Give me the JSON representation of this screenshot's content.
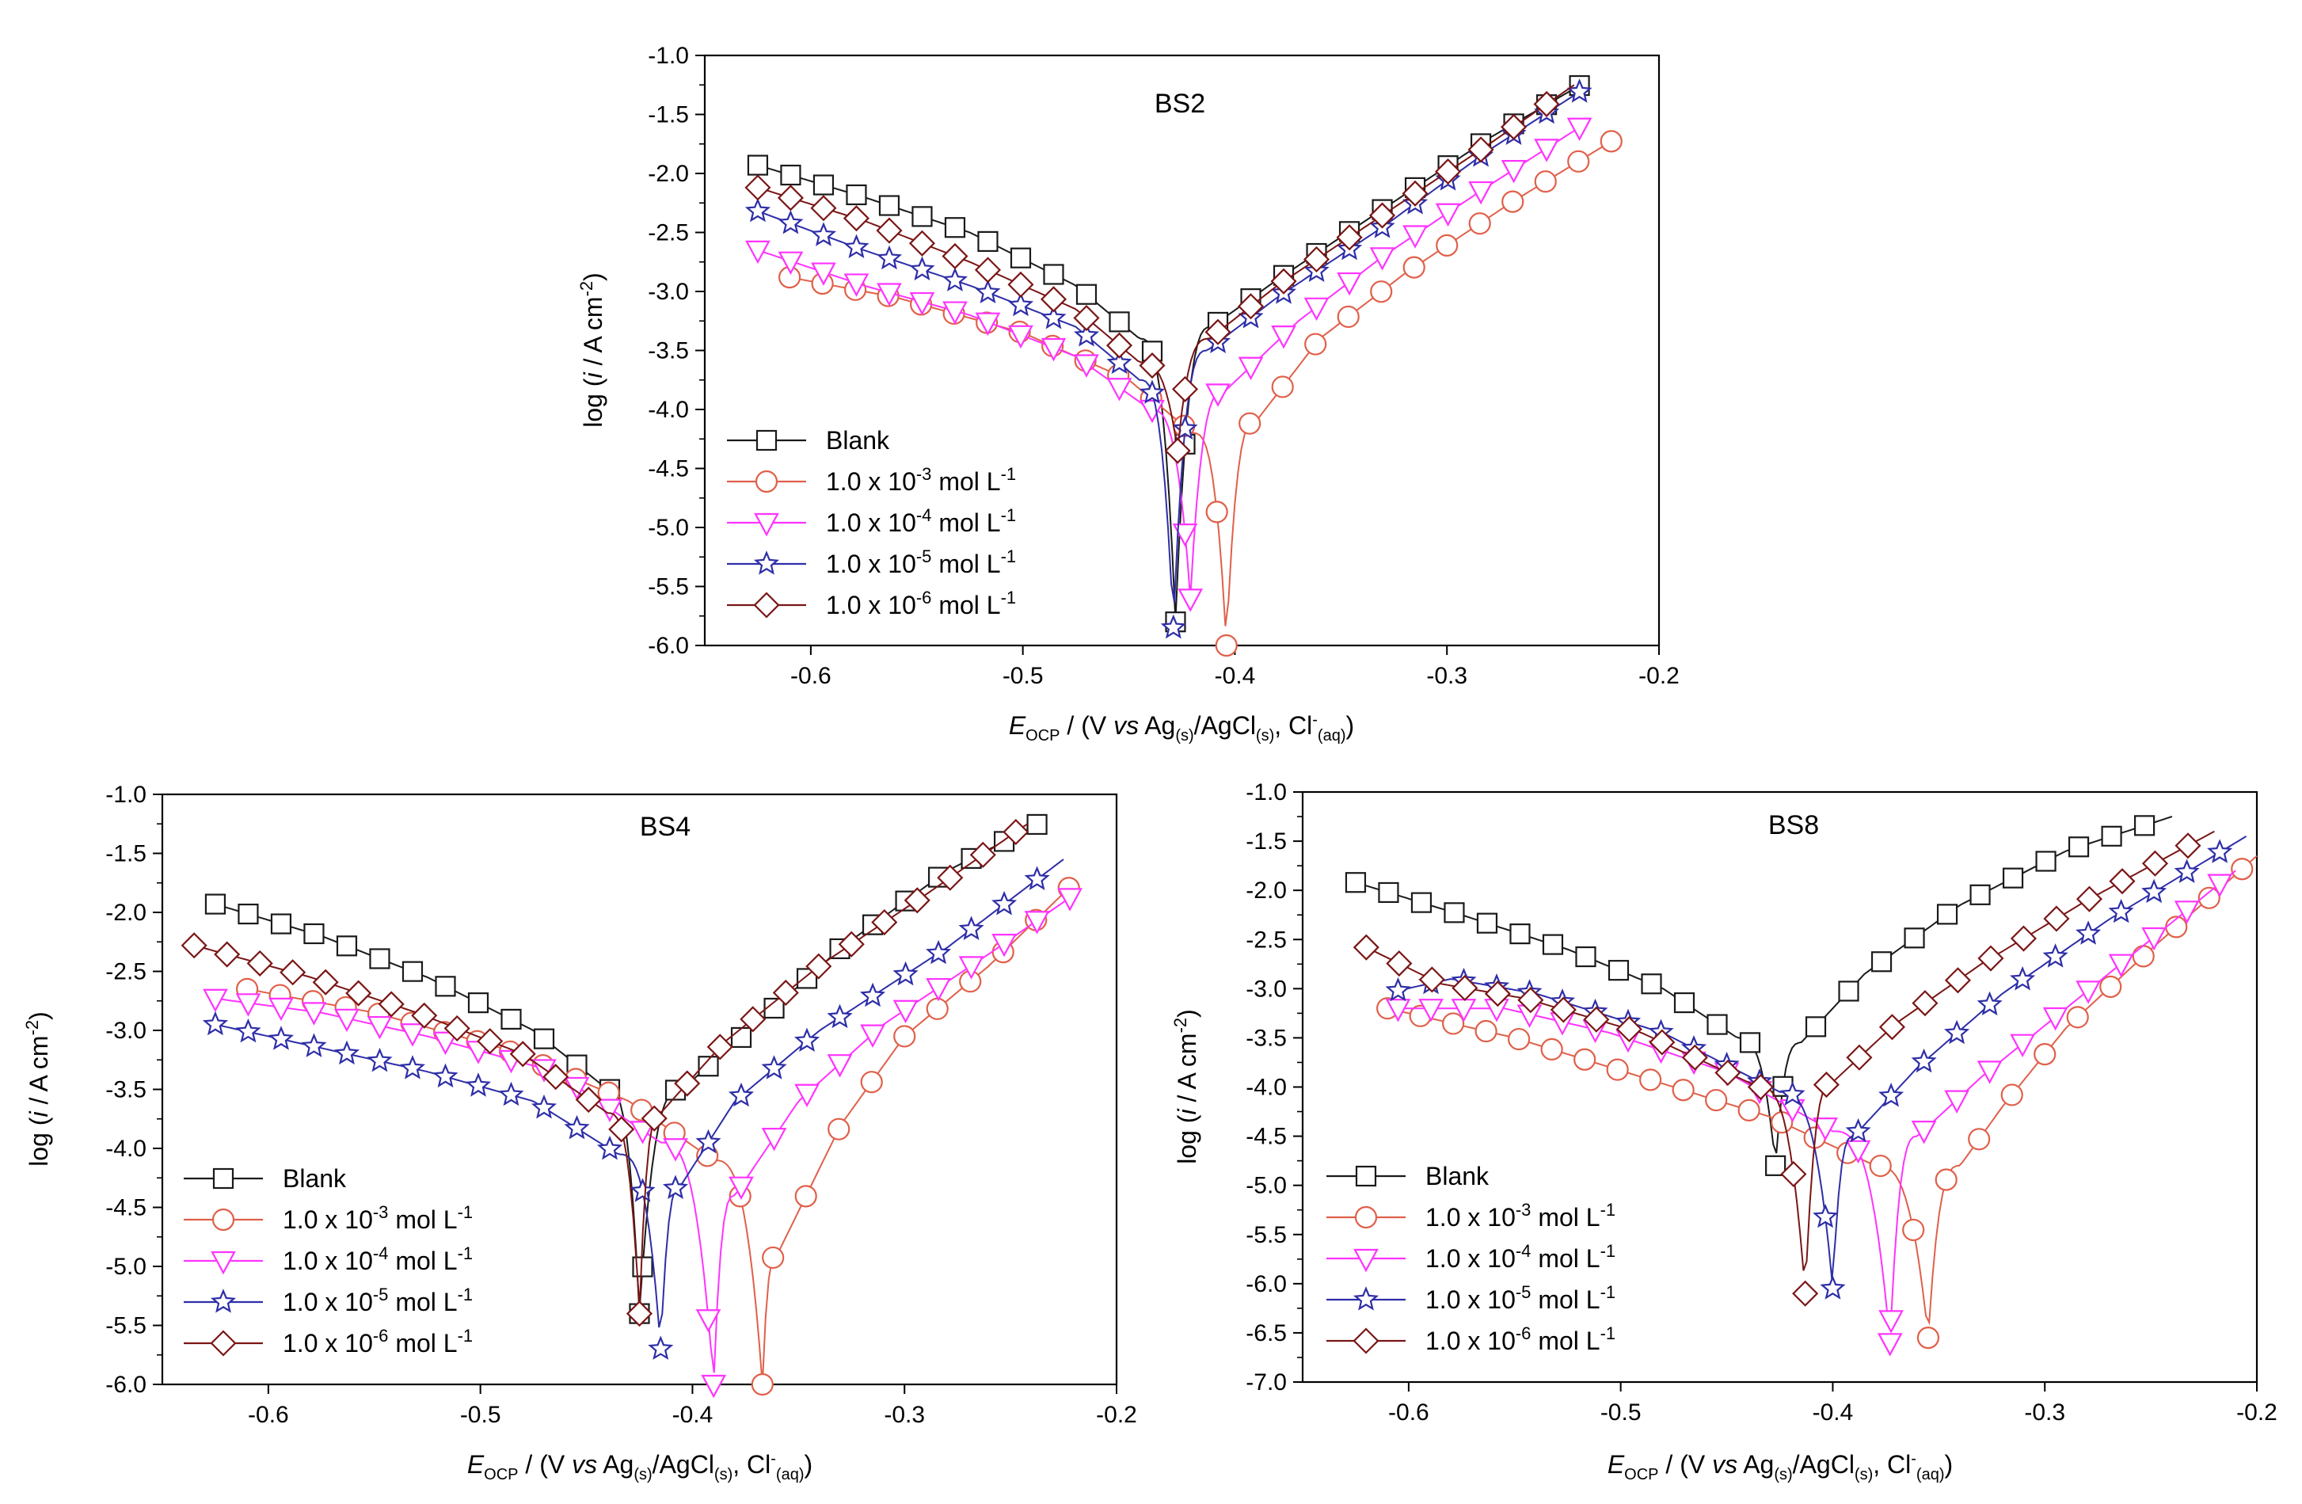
{
  "series_styles": [
    {
      "key": "blank",
      "color": "#1a1a1a",
      "marker": "square"
    },
    {
      "key": "m3",
      "color": "#e0604a",
      "marker": "circle"
    },
    {
      "key": "m4",
      "color": "#ff33ff",
      "marker": "triangle-down"
    },
    {
      "key": "m5",
      "color": "#2e2ea8",
      "marker": "star"
    },
    {
      "key": "m6",
      "color": "#7a1515",
      "marker": "diamond"
    }
  ],
  "legend_labels": [
    {
      "text": "Blank",
      "exp": ""
    },
    {
      "text": "1.0 x 10",
      "exp": "-3",
      "unit": " mol L",
      "unitexp": "-1"
    },
    {
      "text": "1.0 x 10",
      "exp": "-4",
      "unit": " mol L",
      "unitexp": "-1"
    },
    {
      "text": "1.0 x 10",
      "exp": "-5",
      "unit": " mol L",
      "unitexp": "-1"
    },
    {
      "text": "1.0 x 10",
      "exp": "-6",
      "unit": " mol L",
      "unitexp": "-1"
    }
  ],
  "xlabel": {
    "E": "E",
    "ocp": "OCP",
    "a": " / (V ",
    "vs": "vs",
    "b": " Ag",
    "s1": "(s)",
    "c": "/AgCl",
    "s2": "(s)",
    "d": ", Cl",
    "sup": "-",
    "aq": "(aq)",
    "e": ")"
  },
  "ylabel": {
    "a": "log (",
    "i": "i",
    "b": " / A cm",
    "sup": "-2",
    "c": ")"
  },
  "chart_data": [
    {
      "type": "line",
      "title": "BS2",
      "xlim": [
        -0.65,
        -0.2
      ],
      "ylim": [
        -6.0,
        -1.0
      ],
      "xticks": [
        -0.6,
        -0.5,
        -0.4,
        -0.3,
        -0.2
      ],
      "xtick_labels": [
        "-0.6",
        "-0.5",
        "-0.4",
        "-0.3",
        "-0.2"
      ],
      "yticks": [
        -1.0,
        -1.5,
        -2.0,
        -2.5,
        -3.0,
        -3.5,
        -4.0,
        -4.5,
        -5.0,
        -5.5,
        -6.0
      ],
      "ytick_labels": [
        "-1.0",
        "-1.5",
        "-2.0",
        "-2.5",
        "-3.0",
        "-3.5",
        "-4.0",
        "-4.5",
        "-5.0",
        "-5.5",
        "-6.0"
      ],
      "legend": "lower-left",
      "series": [
        {
          "name": "Blank",
          "ecorr": -0.428,
          "x_start": -0.625,
          "x_end": -0.237,
          "cath": [
            [
              -0.625,
              -1.93
            ],
            [
              -0.575,
              -2.2
            ],
            [
              -0.525,
              -2.5
            ],
            [
              -0.475,
              -2.95
            ],
            [
              -0.445,
              -3.4
            ]
          ],
          "anod": [
            [
              -0.411,
              -3.3
            ],
            [
              -0.38,
              -2.9
            ],
            [
              -0.33,
              -2.3
            ],
            [
              -0.28,
              -1.7
            ],
            [
              -0.237,
              -1.25
            ]
          ],
          "dip": -5.8
        },
        {
          "name": "1.0 x 10-3 mol L-1",
          "ecorr": -0.404,
          "x_start": -0.61,
          "x_end": -0.22,
          "cath": [
            [
              -0.61,
              -2.88
            ],
            [
              -0.56,
              -3.05
            ],
            [
              -0.5,
              -3.35
            ],
            [
              -0.45,
              -3.75
            ],
            [
              -0.42,
              -4.2
            ]
          ],
          "anod": [
            [
              -0.39,
              -4.1
            ],
            [
              -0.36,
              -3.4
            ],
            [
              -0.32,
              -2.85
            ],
            [
              -0.27,
              -2.25
            ],
            [
              -0.22,
              -1.7
            ]
          ],
          "dip": -6.0
        },
        {
          "name": "1.0 x 10-4 mol L-1",
          "ecorr": -0.421,
          "x_start": -0.625,
          "x_end": -0.235,
          "cath": [
            [
              -0.625,
              -2.65
            ],
            [
              -0.575,
              -2.95
            ],
            [
              -0.525,
              -3.2
            ],
            [
              -0.475,
              -3.55
            ],
            [
              -0.44,
              -4.0
            ]
          ],
          "anod": [
            [
              -0.405,
              -3.85
            ],
            [
              -0.37,
              -3.25
            ],
            [
              -0.33,
              -2.7
            ],
            [
              -0.28,
              -2.1
            ],
            [
              -0.235,
              -1.58
            ]
          ],
          "dip": -5.6
        },
        {
          "name": "1.0 x 10-5 mol L-1",
          "ecorr": -0.429,
          "x_start": -0.625,
          "x_end": -0.235,
          "cath": [
            [
              -0.625,
              -2.32
            ],
            [
              -0.575,
              -2.65
            ],
            [
              -0.525,
              -2.95
            ],
            [
              -0.475,
              -3.3
            ],
            [
              -0.445,
              -3.75
            ]
          ],
          "anod": [
            [
              -0.413,
              -3.5
            ],
            [
              -0.38,
              -3.05
            ],
            [
              -0.33,
              -2.45
            ],
            [
              -0.28,
              -1.8
            ],
            [
              -0.235,
              -1.28
            ]
          ],
          "dip": -5.85
        },
        {
          "name": "1.0 x 10-6 mol L-1",
          "ecorr": -0.427,
          "x_start": -0.625,
          "x_end": -0.24,
          "cath": [
            [
              -0.625,
              -2.12
            ],
            [
              -0.575,
              -2.4
            ],
            [
              -0.525,
              -2.75
            ],
            [
              -0.475,
              -3.15
            ],
            [
              -0.445,
              -3.6
            ]
          ],
          "anod": [
            [
              -0.412,
              -3.4
            ],
            [
              -0.38,
              -2.95
            ],
            [
              -0.33,
              -2.35
            ],
            [
              -0.28,
              -1.75
            ],
            [
              -0.24,
              -1.25
            ]
          ],
          "dip": -4.35
        }
      ]
    },
    {
      "type": "line",
      "title": "BS4",
      "xlim": [
        -0.65,
        -0.2
      ],
      "ylim": [
        -6.0,
        -1.0
      ],
      "xticks": [
        -0.6,
        -0.5,
        -0.4,
        -0.3,
        -0.2
      ],
      "xtick_labels": [
        "-0.6",
        "-0.5",
        "-0.4",
        "-0.3",
        "-0.2"
      ],
      "yticks": [
        -1.0,
        -1.5,
        -2.0,
        -2.5,
        -3.0,
        -3.5,
        -4.0,
        -4.5,
        -5.0,
        -5.5,
        -6.0
      ],
      "ytick_labels": [
        "-1.0",
        "-1.5",
        "-2.0",
        "-2.5",
        "-3.0",
        "-3.5",
        "-4.0",
        "-4.5",
        "-5.0",
        "-5.5",
        "-6.0"
      ],
      "legend": "lower-left",
      "series": [
        {
          "name": "Blank",
          "ecorr": -0.425,
          "x_start": -0.625,
          "x_end": -0.237,
          "cath": [
            [
              -0.625,
              -1.93
            ],
            [
              -0.575,
              -2.2
            ],
            [
              -0.525,
              -2.55
            ],
            [
              -0.475,
              -3.0
            ],
            [
              -0.44,
              -3.5
            ]
          ],
          "anod": [
            [
              -0.405,
              -3.5
            ],
            [
              -0.37,
              -2.95
            ],
            [
              -0.33,
              -2.3
            ],
            [
              -0.28,
              -1.65
            ],
            [
              -0.237,
              -1.25
            ]
          ],
          "dip": -5.4
        },
        {
          "name": "1.0 x 10-3 mol L-1",
          "ecorr": -0.367,
          "x_start": -0.61,
          "x_end": -0.22,
          "cath": [
            [
              -0.61,
              -2.65
            ],
            [
              -0.55,
              -2.85
            ],
            [
              -0.49,
              -3.15
            ],
            [
              -0.43,
              -3.6
            ],
            [
              -0.39,
              -4.1
            ]
          ],
          "anod": [
            [
              -0.36,
              -4.9
            ],
            [
              -0.33,
              -3.8
            ],
            [
              -0.3,
              -3.05
            ],
            [
              -0.26,
              -2.45
            ],
            [
              -0.22,
              -1.75
            ]
          ],
          "dip": -6.0
        },
        {
          "name": "1.0 x 10-4 mol L-1",
          "ecorr": -0.39,
          "x_start": -0.625,
          "x_end": -0.22,
          "cath": [
            [
              -0.625,
              -2.73
            ],
            [
              -0.575,
              -2.85
            ],
            [
              -0.525,
              -3.05
            ],
            [
              -0.465,
              -3.35
            ],
            [
              -0.415,
              -3.95
            ]
          ],
          "anod": [
            [
              -0.38,
              -4.4
            ],
            [
              -0.35,
              -3.6
            ],
            [
              -0.31,
              -2.95
            ],
            [
              -0.26,
              -2.35
            ],
            [
              -0.22,
              -1.85
            ]
          ],
          "dip": -6.0
        },
        {
          "name": "1.0 x 10-5 mol L-1",
          "ecorr": -0.415,
          "x_start": -0.625,
          "x_end": -0.225,
          "cath": [
            [
              -0.625,
              -2.95
            ],
            [
              -0.575,
              -3.15
            ],
            [
              -0.525,
              -3.35
            ],
            [
              -0.475,
              -3.6
            ],
            [
              -0.435,
              -4.05
            ]
          ],
          "anod": [
            [
              -0.405,
              -4.3
            ],
            [
              -0.38,
              -3.6
            ],
            [
              -0.34,
              -3.0
            ],
            [
              -0.28,
              -2.3
            ],
            [
              -0.225,
              -1.55
            ]
          ],
          "dip": -5.7
        },
        {
          "name": "1.0 x 10-6 mol L-1",
          "ecorr": -0.425,
          "x_start": -0.635,
          "x_end": -0.242,
          "cath": [
            [
              -0.635,
              -2.28
            ],
            [
              -0.58,
              -2.55
            ],
            [
              -0.53,
              -2.85
            ],
            [
              -0.48,
              -3.2
            ],
            [
              -0.44,
              -3.7
            ]
          ],
          "anod": [
            [
              -0.415,
              -3.7
            ],
            [
              -0.385,
              -3.1
            ],
            [
              -0.34,
              -2.45
            ],
            [
              -0.29,
              -1.85
            ],
            [
              -0.242,
              -1.25
            ]
          ],
          "dip": -5.4
        }
      ]
    },
    {
      "type": "line",
      "title": "BS8",
      "xlim": [
        -0.65,
        -0.2
      ],
      "ylim": [
        -7.0,
        -1.0
      ],
      "xticks": [
        -0.6,
        -0.5,
        -0.4,
        -0.3,
        -0.2
      ],
      "xtick_labels": [
        "-0.6",
        "-0.5",
        "-0.4",
        "-0.3",
        "-0.2"
      ],
      "yticks": [
        -1.0,
        -1.5,
        -2.0,
        -2.5,
        -3.0,
        -3.5,
        -4.0,
        -4.5,
        -5.0,
        -5.5,
        -6.0,
        -6.5,
        -7.0
      ],
      "ytick_labels": [
        "-1.0",
        "-1.5",
        "-2.0",
        "-2.5",
        "-3.0",
        "-3.5",
        "-4.0",
        "-4.5",
        "-5.0",
        "-5.5",
        "-6.0",
        "-6.5",
        "-7.0"
      ],
      "legend": "lower-left",
      "series": [
        {
          "name": "Blank",
          "ecorr": -0.427,
          "x_start": -0.625,
          "x_end": -0.24,
          "cath": [
            [
              -0.625,
              -1.92
            ],
            [
              -0.575,
              -2.25
            ],
            [
              -0.525,
              -2.6
            ],
            [
              -0.48,
              -3.0
            ],
            [
              -0.445,
              -3.5
            ]
          ],
          "anod": [
            [
              -0.415,
              -3.55
            ],
            [
              -0.385,
              -2.85
            ],
            [
              -0.34,
              -2.15
            ],
            [
              -0.29,
              -1.6
            ],
            [
              -0.24,
              -1.25
            ]
          ],
          "dip": -4.8
        },
        {
          "name": "1.0 x 10-3 mol L-1",
          "ecorr": -0.355,
          "x_start": -0.61,
          "x_end": -0.2,
          "cath": [
            [
              -0.61,
              -3.2
            ],
            [
              -0.55,
              -3.5
            ],
            [
              -0.49,
              -3.9
            ],
            [
              -0.43,
              -4.3
            ],
            [
              -0.38,
              -4.8
            ]
          ],
          "anod": [
            [
              -0.34,
              -4.8
            ],
            [
              -0.32,
              -4.2
            ],
            [
              -0.29,
              -3.4
            ],
            [
              -0.25,
              -2.6
            ],
            [
              -0.2,
              -1.65
            ]
          ],
          "dip": -6.55
        },
        {
          "name": "1.0 x 10-4 mol L-1",
          "ecorr": -0.373,
          "x_start": -0.605,
          "x_end": -0.21,
          "cath": [
            [
              -0.605,
              -3.2
            ],
            [
              -0.555,
              -3.2
            ],
            [
              -0.505,
              -3.45
            ],
            [
              -0.45,
              -3.85
            ],
            [
              -0.4,
              -4.45
            ]
          ],
          "anod": [
            [
              -0.36,
              -4.5
            ],
            [
              -0.33,
              -3.9
            ],
            [
              -0.29,
              -3.2
            ],
            [
              -0.25,
              -2.5
            ],
            [
              -0.21,
              -1.8
            ]
          ],
          "dip": -6.6
        },
        {
          "name": "1.0 x 10-5 mol L-1",
          "ecorr": -0.4,
          "x_start": -0.605,
          "x_end": -0.205,
          "cath": [
            [
              -0.605,
              -3.02
            ],
            [
              -0.58,
              -2.9
            ],
            [
              -0.54,
              -3.05
            ],
            [
              -0.48,
              -3.45
            ],
            [
              -0.425,
              -4.05
            ]
          ],
          "anod": [
            [
              -0.39,
              -4.5
            ],
            [
              -0.36,
              -3.8
            ],
            [
              -0.32,
              -3.05
            ],
            [
              -0.27,
              -2.3
            ],
            [
              -0.205,
              -1.45
            ]
          ],
          "dip": -6.05
        },
        {
          "name": "1.0 x 10-6 mol L-1",
          "ecorr": -0.413,
          "x_start": -0.62,
          "x_end": -0.22,
          "cath": [
            [
              -0.62,
              -2.58
            ],
            [
              -0.585,
              -2.95
            ],
            [
              -0.545,
              -3.1
            ],
            [
              -0.49,
              -3.45
            ],
            [
              -0.435,
              -4.0
            ]
          ],
          "anod": [
            [
              -0.4,
              -3.95
            ],
            [
              -0.37,
              -3.35
            ],
            [
              -0.33,
              -2.75
            ],
            [
              -0.28,
              -2.1
            ],
            [
              -0.22,
              -1.4
            ]
          ],
          "dip": -6.1
        }
      ]
    }
  ]
}
